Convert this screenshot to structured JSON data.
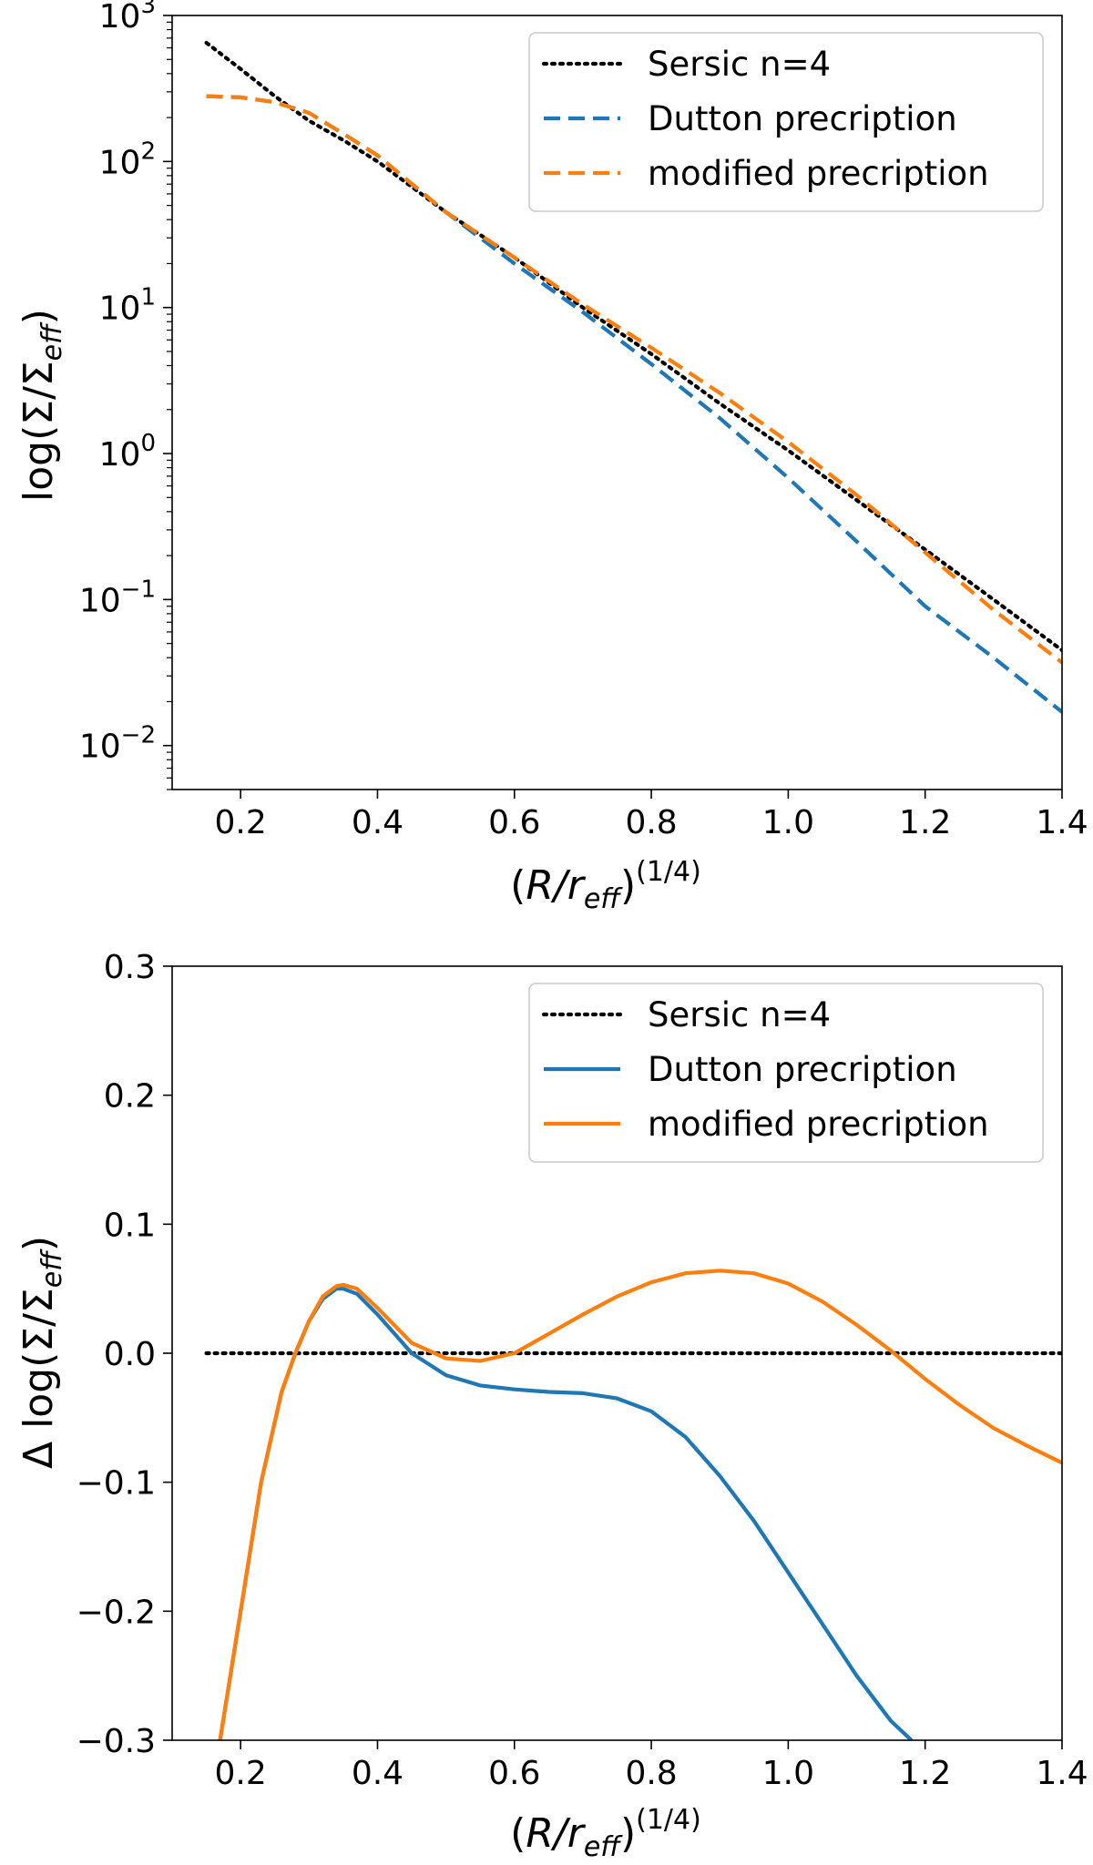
{
  "chart_data": [
    {
      "type": "line",
      "panel": "top",
      "xlabel": "(R/r_eff)^(1/4)",
      "xlabel_parts": {
        "open": "(",
        "r": "R",
        "slash": "/r",
        "sub": "eff",
        "close": ")",
        "exp": "(1/4)"
      },
      "ylabel": "log(Σ/Σ_eff)",
      "ylabel_parts": {
        "pre": "log(Σ/Σ",
        "sub": "eff",
        "post": ")"
      },
      "xlim": [
        0.1,
        1.4
      ],
      "ylim": [
        0.005,
        1000
      ],
      "yscale": "log",
      "x_ticks": [
        "0.2",
        "0.4",
        "0.6",
        "0.8",
        "1.0",
        "1.2",
        "1.4"
      ],
      "x_tick_values": [
        0.2,
        0.4,
        0.6,
        0.8,
        1.0,
        1.2,
        1.4
      ],
      "y_ticks": [
        {
          "value": 1000,
          "base": "10",
          "exp": "3"
        },
        {
          "value": 100,
          "base": "10",
          "exp": "2"
        },
        {
          "value": 10,
          "base": "10",
          "exp": "1"
        },
        {
          "value": 1,
          "base": "10",
          "exp": "0"
        },
        {
          "value": 0.1,
          "base": "10",
          "exp": "−1"
        },
        {
          "value": 0.01,
          "base": "10",
          "exp": "−2"
        }
      ],
      "grid": false,
      "legend": "top-right",
      "series": [
        {
          "name": "Sersic n=4",
          "color": "#000000",
          "style": "dotted",
          "x": [
            0.15,
            0.2,
            0.25,
            0.3,
            0.35,
            0.4,
            0.5,
            0.6,
            0.7,
            0.8,
            0.9,
            1.0,
            1.1,
            1.2,
            1.3,
            1.4
          ],
          "y": [
            650,
            430,
            280,
            190,
            140,
            100,
            45,
            22,
            10,
            4.8,
            2.2,
            1.05,
            0.48,
            0.22,
            0.1,
            0.045
          ]
        },
        {
          "name": "Dutton precription",
          "color": "#1f77b4",
          "style": "dashed",
          "x": [
            0.15,
            0.2,
            0.25,
            0.3,
            0.35,
            0.4,
            0.5,
            0.6,
            0.7,
            0.8,
            0.9,
            1.0,
            1.1,
            1.2,
            1.3,
            1.4
          ],
          "y": [
            280,
            275,
            255,
            215,
            155,
            110,
            45,
            20,
            9.3,
            4.1,
            1.75,
            0.68,
            0.25,
            0.09,
            0.04,
            0.017
          ]
        },
        {
          "name": "modified precription",
          "color": "#ff7f0e",
          "style": "dashed",
          "x": [
            0.15,
            0.2,
            0.25,
            0.3,
            0.35,
            0.4,
            0.5,
            0.6,
            0.7,
            0.8,
            0.9,
            1.0,
            1.1,
            1.2,
            1.3,
            1.4
          ],
          "y": [
            280,
            275,
            255,
            215,
            155,
            110,
            45,
            22,
            10.5,
            5.3,
            2.6,
            1.2,
            0.52,
            0.21,
            0.085,
            0.037
          ]
        }
      ]
    },
    {
      "type": "line",
      "panel": "bottom",
      "xlabel": "(R/r_eff)^(1/4)",
      "xlabel_parts": {
        "open": "(",
        "r": "R",
        "slash": "/r",
        "sub": "eff",
        "close": ")",
        "exp": "(1/4)"
      },
      "ylabel": "Δ log(Σ/Σ_eff)",
      "ylabel_parts": {
        "pre": "Δ log(Σ/Σ",
        "sub": "eff",
        "post": ")"
      },
      "xlim": [
        0.1,
        1.4
      ],
      "ylim": [
        -0.3,
        0.3
      ],
      "yscale": "linear",
      "x_ticks": [
        "0.2",
        "0.4",
        "0.6",
        "0.8",
        "1.0",
        "1.2",
        "1.4"
      ],
      "x_tick_values": [
        0.2,
        0.4,
        0.6,
        0.8,
        1.0,
        1.2,
        1.4
      ],
      "y_ticks": [
        "0.3",
        "0.2",
        "0.1",
        "0.0",
        "−0.1",
        "−0.2",
        "−0.3"
      ],
      "y_tick_values": [
        0.3,
        0.2,
        0.1,
        0.0,
        -0.1,
        -0.2,
        -0.3
      ],
      "grid": false,
      "legend": "top-right",
      "series": [
        {
          "name": "Sersic n=4",
          "color": "#000000",
          "style": "dotted",
          "x": [
            0.15,
            1.4
          ],
          "y": [
            0.0,
            0.0
          ]
        },
        {
          "name": "Dutton precription",
          "color": "#1f77b4",
          "style": "solid",
          "x": [
            0.17,
            0.2,
            0.23,
            0.26,
            0.28,
            0.3,
            0.32,
            0.34,
            0.35,
            0.37,
            0.4,
            0.45,
            0.5,
            0.55,
            0.6,
            0.65,
            0.7,
            0.75,
            0.8,
            0.85,
            0.9,
            0.95,
            1.0,
            1.05,
            1.1,
            1.15,
            1.18
          ],
          "y": [
            -0.3,
            -0.2,
            -0.1,
            -0.03,
            0.0,
            0.025,
            0.042,
            0.05,
            0.05,
            0.046,
            0.03,
            0.0,
            -0.017,
            -0.025,
            -0.028,
            -0.03,
            -0.031,
            -0.035,
            -0.045,
            -0.065,
            -0.095,
            -0.13,
            -0.17,
            -0.21,
            -0.25,
            -0.285,
            -0.3
          ]
        },
        {
          "name": "modified precription",
          "color": "#ff7f0e",
          "style": "solid",
          "x": [
            0.17,
            0.2,
            0.23,
            0.26,
            0.28,
            0.3,
            0.32,
            0.34,
            0.35,
            0.37,
            0.4,
            0.45,
            0.5,
            0.55,
            0.6,
            0.65,
            0.7,
            0.75,
            0.8,
            0.85,
            0.9,
            0.95,
            1.0,
            1.05,
            1.1,
            1.15,
            1.2,
            1.25,
            1.3,
            1.35,
            1.4
          ],
          "y": [
            -0.3,
            -0.2,
            -0.1,
            -0.03,
            0.0,
            0.025,
            0.044,
            0.052,
            0.053,
            0.05,
            0.035,
            0.008,
            -0.004,
            -0.006,
            0.0,
            0.015,
            0.03,
            0.044,
            0.055,
            0.062,
            0.064,
            0.062,
            0.054,
            0.04,
            0.022,
            0.002,
            -0.02,
            -0.04,
            -0.058,
            -0.072,
            -0.085
          ]
        }
      ]
    }
  ]
}
